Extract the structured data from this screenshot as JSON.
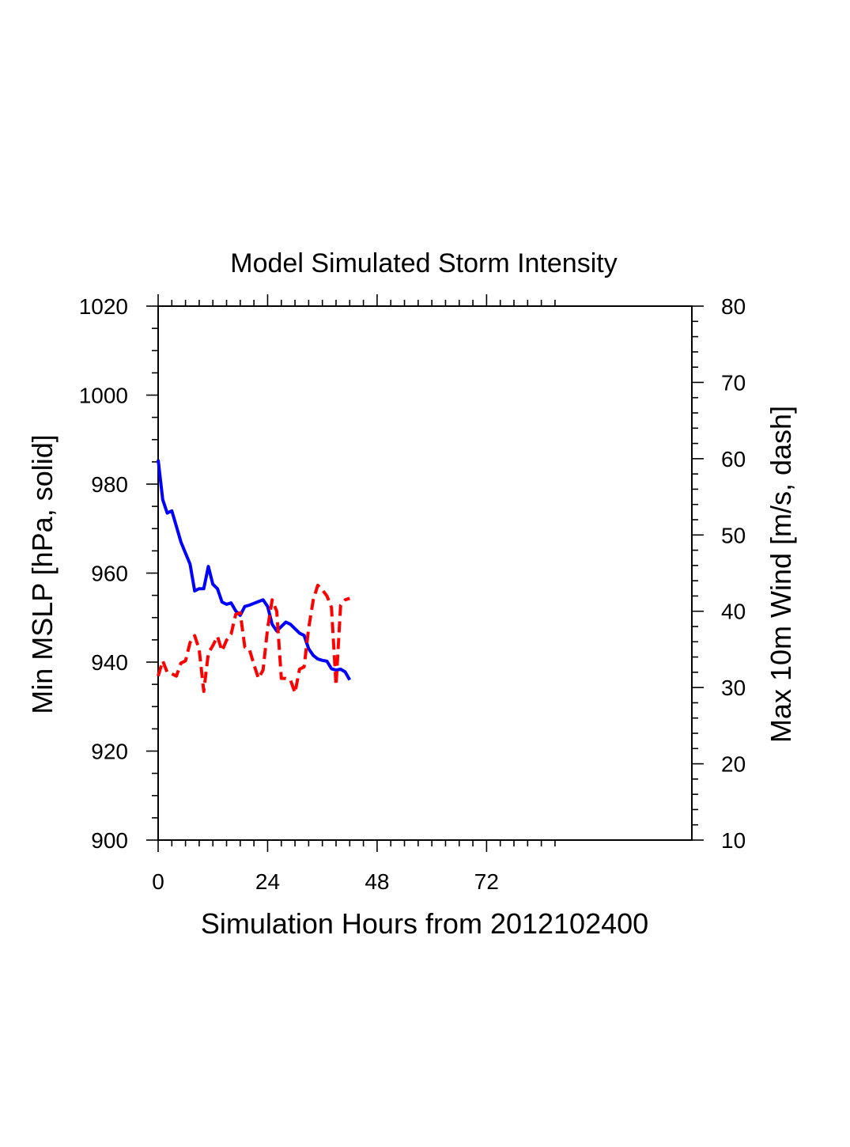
{
  "chart_data": {
    "type": "line",
    "title": "Model Simulated Storm Intensity",
    "xlabel": "Simulation Hours from 2012102400",
    "ylabel_left": "Min MSLP  [hPa, solid]",
    "ylabel_right": "Max 10m Wind  [m/s, dash]",
    "xlim": [
      0,
      117
    ],
    "ylim_left": [
      900,
      1020
    ],
    "ylim_right": [
      10,
      80
    ],
    "x_ticks": [
      0,
      24,
      48,
      72
    ],
    "y_ticks_left": [
      900,
      920,
      940,
      960,
      980,
      1000,
      1020
    ],
    "y_ticks_right": [
      10,
      20,
      30,
      40,
      50,
      60,
      70,
      80
    ],
    "series": [
      {
        "name": "Min MSLP",
        "axis": "left",
        "style": "solid",
        "color": "#0000ff",
        "x": [
          0,
          1,
          2,
          3,
          4,
          5,
          6,
          7,
          8,
          9,
          10,
          11,
          12,
          13,
          14,
          15,
          16,
          17,
          18,
          19,
          20,
          21,
          22,
          23,
          24,
          25,
          26,
          27,
          28,
          29,
          30,
          31,
          32,
          33,
          34,
          35,
          36,
          37,
          38,
          39,
          40,
          41,
          42
        ],
        "y": [
          985.5,
          976.5,
          973.5,
          974.0,
          970.5,
          967.0,
          964.5,
          962.0,
          956.0,
          956.5,
          956.5,
          961.5,
          957.5,
          956.5,
          953.5,
          953.0,
          953.3,
          951.5,
          950.5,
          952.5,
          952.8,
          953.2,
          953.6,
          954.0,
          952.5,
          948.5,
          947.0,
          948.0,
          949.0,
          948.5,
          947.5,
          946.5,
          946.0,
          943.0,
          941.5,
          940.7,
          940.4,
          940.2,
          938.5,
          938.2,
          938.4,
          937.8,
          936.0
        ]
      },
      {
        "name": "Max 10m Wind",
        "axis": "right",
        "style": "dashed",
        "color": "#ff0000",
        "x": [
          0,
          1,
          2,
          3,
          4,
          5,
          6,
          7,
          8,
          9,
          10,
          11,
          12,
          13,
          14,
          15,
          16,
          17,
          18,
          19,
          20,
          21,
          22,
          23,
          24,
          25,
          26,
          27,
          28,
          29,
          30,
          31,
          32,
          33,
          34,
          35,
          36,
          37,
          38,
          39,
          40,
          41,
          42
        ],
        "y": [
          31.5,
          33.5,
          32.0,
          31.8,
          31.5,
          33.2,
          33.5,
          35.9,
          36.8,
          35.0,
          29.5,
          34.5,
          35.5,
          36.7,
          34.8,
          36.2,
          37.0,
          39.6,
          39.8,
          35.3,
          35.0,
          33.0,
          31.2,
          32.3,
          37.8,
          41.5,
          40.0,
          31.2,
          31.2,
          31.0,
          29.3,
          32.4,
          32.7,
          37.8,
          41.5,
          43.4,
          42.8,
          42.0,
          40.5,
          30.3,
          40.8,
          41.5,
          41.7
        ]
      }
    ]
  }
}
